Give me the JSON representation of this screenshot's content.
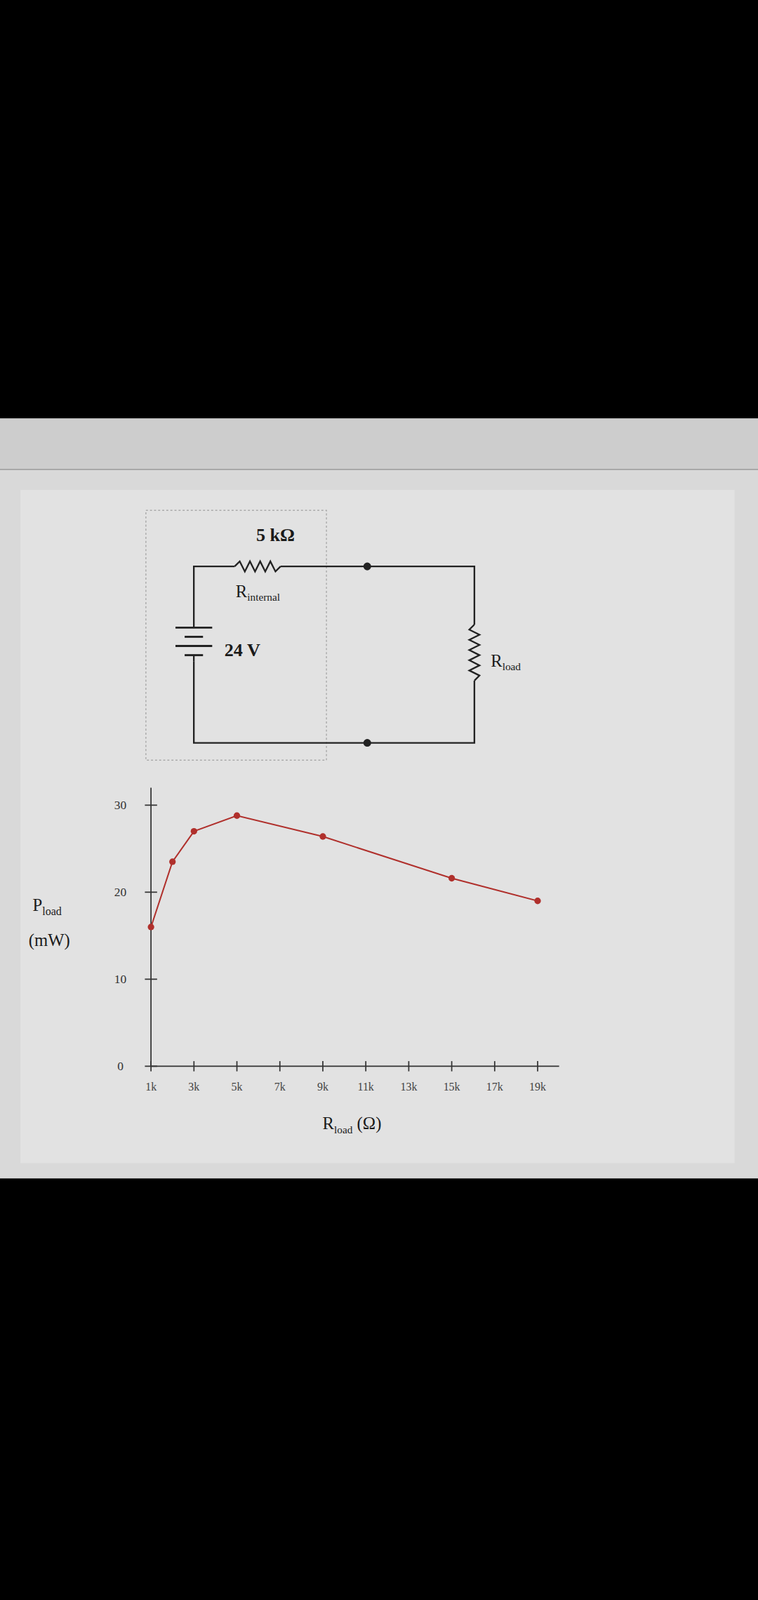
{
  "circuit": {
    "r_internal_value": "5 kΩ",
    "r_internal_label": "Rinternal",
    "source": "24 V",
    "r_load_label": "Rload"
  },
  "chart_data": {
    "type": "line",
    "xlabel": "Rload (Ω)",
    "ylabel": "Pload (mW)",
    "x": [
      1000,
      2000,
      3000,
      5000,
      9000,
      15000,
      19000
    ],
    "series": [
      {
        "name": "Pload",
        "color": "#b0302c",
        "marker": "circle",
        "values": [
          16,
          23.5,
          27,
          28.8,
          26.4,
          21.6,
          19
        ]
      }
    ],
    "xlim": [
      1000,
      20000
    ],
    "xticks": [
      {
        "value": 1000,
        "label": "1k"
      },
      {
        "value": 3000,
        "label": "3k"
      },
      {
        "value": 5000,
        "label": "5k"
      },
      {
        "value": 7000,
        "label": "7k"
      },
      {
        "value": 9000,
        "label": "9k"
      },
      {
        "value": 11000,
        "label": "11k"
      },
      {
        "value": 13000,
        "label": "13k"
      },
      {
        "value": 15000,
        "label": "15k"
      },
      {
        "value": 17000,
        "label": "17k"
      },
      {
        "value": 19000,
        "label": "19k"
      }
    ],
    "ylim": [
      0,
      32
    ],
    "yticks": [
      0,
      10,
      20,
      30
    ],
    "grid": false
  }
}
